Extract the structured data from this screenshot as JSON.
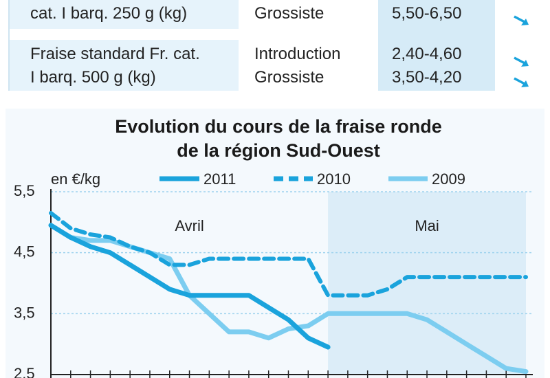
{
  "table": {
    "rows": [
      {
        "product": "cat. I barq. 250 g (kg)",
        "stage": "Grossiste",
        "price": "5,50-6,50",
        "trend_icon": "arrow-down-right-icon"
      },
      {
        "product": "Fraise standard Fr. cat.",
        "stage": "Introduction",
        "price": "2,40-4,60",
        "trend_icon": "arrow-down-right-icon"
      },
      {
        "product": "I barq. 500 g (kg)",
        "stage": "Grossiste",
        "price": "3,50-4,20",
        "trend_icon": "arrow-down-right-icon"
      }
    ]
  },
  "colors": {
    "s2011": "#1aa3dc",
    "s2010": "#1aa3dc",
    "s2009": "#7ccdf0",
    "may_band": "#dcedf8",
    "panel": "#f4f9fd",
    "table_band": "#e6f3fb",
    "price_band": "#d6ebf7"
  },
  "chart_data": {
    "type": "line",
    "title": "Evolution du cours de la fraise ronde",
    "subtitle": "de la région Sud-Ouest",
    "ylabel": "en €/kg",
    "xlabel": "",
    "ylim": [
      2.5,
      5.5
    ],
    "yticks": [
      "5,5",
      "4,5",
      "3,5",
      "2,5"
    ],
    "ytick_values": [
      5.5,
      4.5,
      3.5,
      2.5
    ],
    "x_index_range": [
      0,
      24
    ],
    "x_period_labels": [
      {
        "label": "Avril",
        "start": 0,
        "end": 14
      },
      {
        "label": "Mai",
        "start": 14,
        "end": 24
      }
    ],
    "legend": [
      "2011",
      "2010",
      "2009"
    ],
    "legend_position": "top",
    "series": [
      {
        "name": "2011",
        "style": "solid",
        "values": [
          4.95,
          4.75,
          4.6,
          4.5,
          4.3,
          4.1,
          3.9,
          3.8,
          3.8,
          3.8,
          3.8,
          3.6,
          3.4,
          3.1,
          2.95
        ]
      },
      {
        "name": "2010",
        "style": "dashed",
        "values": [
          5.15,
          4.9,
          4.8,
          4.75,
          4.6,
          4.5,
          4.3,
          4.3,
          4.4,
          4.4,
          4.4,
          4.4,
          4.4,
          4.4,
          3.8,
          3.8,
          3.8,
          3.9,
          4.1,
          4.1,
          4.1,
          4.1,
          4.1,
          4.1,
          4.1
        ]
      },
      {
        "name": "2009",
        "style": "solid-light",
        "values": [
          4.95,
          4.75,
          4.7,
          4.7,
          4.6,
          4.5,
          4.4,
          3.8,
          3.5,
          3.2,
          3.2,
          3.1,
          3.25,
          3.3,
          3.5,
          3.5,
          3.5,
          3.5,
          3.5,
          3.4,
          3.2,
          3.0,
          2.8,
          2.6,
          2.55
        ]
      }
    ]
  }
}
